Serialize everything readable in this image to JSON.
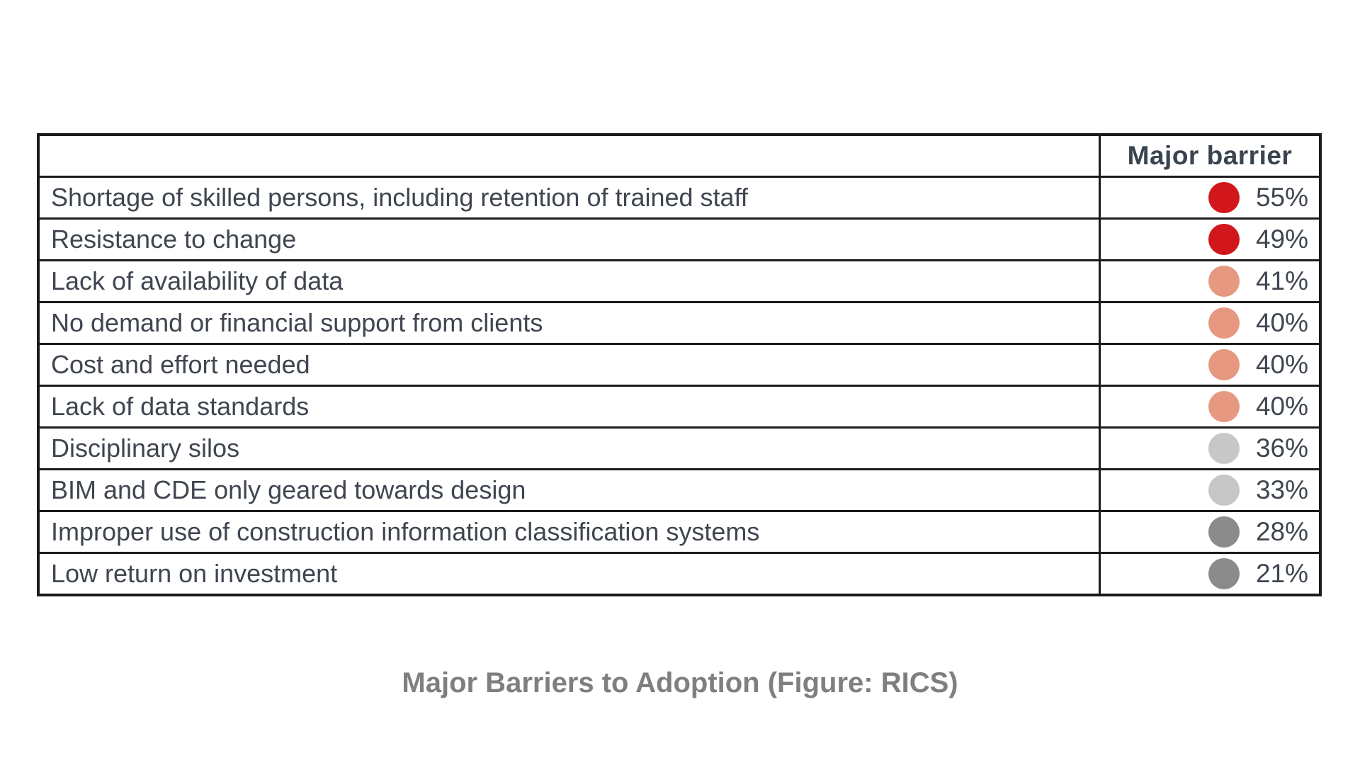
{
  "table": {
    "header": {
      "label_column": "",
      "value_column": "Major barrier"
    },
    "rows": [
      {
        "label": "Shortage of skilled persons, including retention of trained staff",
        "value": "55%",
        "dot_color": "#d2171c"
      },
      {
        "label": "Resistance to change",
        "value": "49%",
        "dot_color": "#d2171c"
      },
      {
        "label": "Lack of availability of data",
        "value": "41%",
        "dot_color": "#e69980"
      },
      {
        "label": "No demand or financial support from clients",
        "value": "40%",
        "dot_color": "#e69980"
      },
      {
        "label": "Cost and effort needed",
        "value": "40%",
        "dot_color": "#e69980"
      },
      {
        "label": "Lack of data standards",
        "value": "40%",
        "dot_color": "#e69980"
      },
      {
        "label": "Disciplinary silos",
        "value": "36%",
        "dot_color": "#c7c7c7"
      },
      {
        "label": "BIM and CDE only geared towards design",
        "value": "33%",
        "dot_color": "#c7c7c7"
      },
      {
        "label": "Improper use of construction information classification systems",
        "value": "28%",
        "dot_color": "#8b8b8b"
      },
      {
        "label": "Low return on investment",
        "value": "21%",
        "dot_color": "#8b8b8b"
      }
    ]
  },
  "caption": "Major Barriers to Adoption (Figure: RICS)",
  "colors": {
    "border": "#1b1b1b",
    "row_text": "#3f4650",
    "header_text": "#3a4450",
    "caption_text": "#7f7f7f",
    "dot_red": "#d2171c",
    "dot_salmon": "#e69980",
    "dot_light_gray": "#c7c7c7",
    "dot_dark_gray": "#8b8b8b"
  },
  "chart_data": {
    "type": "table",
    "title": "Major Barriers to Adoption (Figure: RICS)",
    "columns": [
      "",
      "Major barrier"
    ],
    "categories": [
      "Shortage of skilled persons, including retention of trained staff",
      "Resistance to change",
      "Lack of availability of data",
      "No demand or financial support from clients",
      "Cost and effort needed",
      "Lack of data standards",
      "Disciplinary silos",
      "BIM and CDE only geared towards design",
      "Improper use of construction information classification systems",
      "Low return on investment"
    ],
    "values": [
      55,
      49,
      41,
      40,
      40,
      40,
      36,
      33,
      28,
      21
    ],
    "value_unit": "%",
    "dot_colors": [
      "#d2171c",
      "#d2171c",
      "#e69980",
      "#e69980",
      "#e69980",
      "#e69980",
      "#c7c7c7",
      "#c7c7c7",
      "#8b8b8b",
      "#8b8b8b"
    ],
    "legend_position": "none",
    "grid": "table-borders"
  }
}
